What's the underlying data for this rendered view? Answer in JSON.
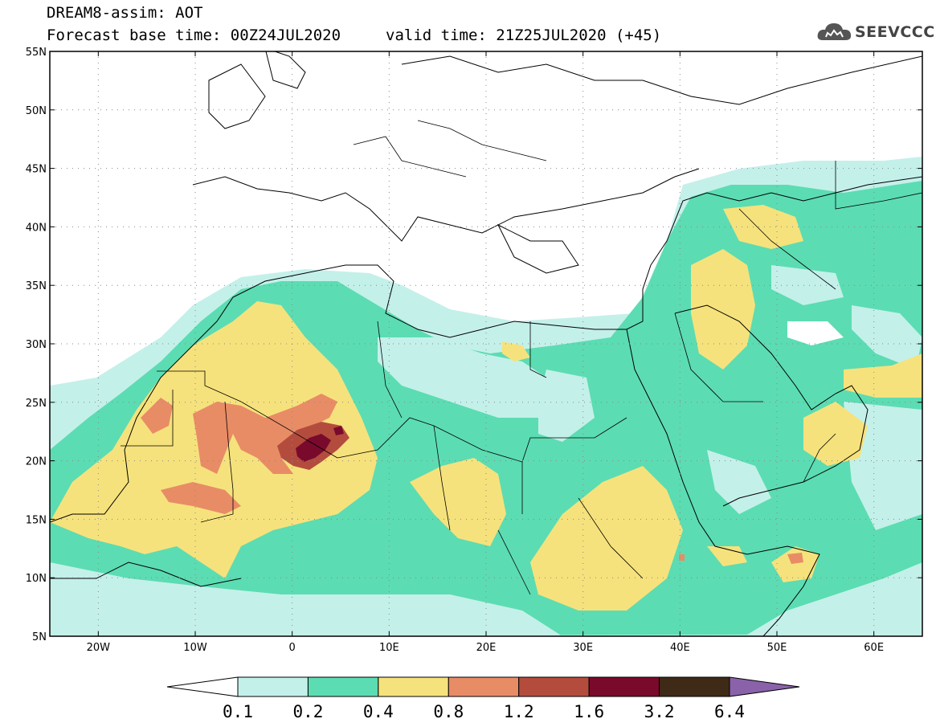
{
  "title": {
    "model": "DREAM8-assim: AOT",
    "base_time": "Forecast base time: 00Z24JUL2020",
    "valid_time": "valid time: 21Z25JUL2020 (+45)"
  },
  "logo": {
    "text": "SEEVCCC",
    "icon": "cloud-icon"
  },
  "axes": {
    "lon_range": [
      -25,
      65
    ],
    "lat_range": [
      5,
      55
    ],
    "lon_ticks": [
      {
        "lon": -20,
        "label": "20W"
      },
      {
        "lon": -10,
        "label": "10W"
      },
      {
        "lon": 0,
        "label": "0"
      },
      {
        "lon": 10,
        "label": "10E"
      },
      {
        "lon": 20,
        "label": "20E"
      },
      {
        "lon": 30,
        "label": "30E"
      },
      {
        "lon": 40,
        "label": "40E"
      },
      {
        "lon": 50,
        "label": "50E"
      },
      {
        "lon": 60,
        "label": "60E"
      }
    ],
    "lat_ticks": [
      {
        "lat": 55,
        "label": "55N"
      },
      {
        "lat": 50,
        "label": "50N"
      },
      {
        "lat": 45,
        "label": "45N"
      },
      {
        "lat": 40,
        "label": "40N"
      },
      {
        "lat": 35,
        "label": "35N"
      },
      {
        "lat": 30,
        "label": "30N"
      },
      {
        "lat": 25,
        "label": "25N"
      },
      {
        "lat": 20,
        "label": "20N"
      },
      {
        "lat": 15,
        "label": "15N"
      },
      {
        "lat": 10,
        "label": "10N"
      },
      {
        "lat": 5,
        "label": "5N"
      }
    ],
    "grid": true
  },
  "colorbar": {
    "labels": [
      "0.1",
      "0.2",
      "0.4",
      "0.8",
      "1.2",
      "1.6",
      "3.2",
      "6.4"
    ],
    "low_color": "#ffffff",
    "colors": [
      "#c4f0ea",
      "#5cdcb2",
      "#f6e27c",
      "#e88c66",
      "#b44c3e",
      "#7a0a2c",
      "#3e2a16"
    ],
    "high_color": "#8a62aa"
  }
}
